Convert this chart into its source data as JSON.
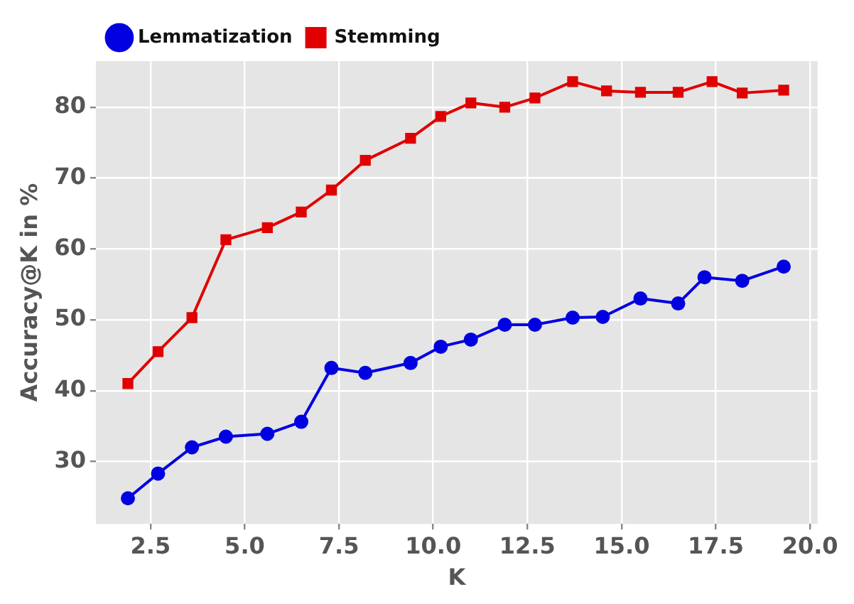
{
  "chart_data": {
    "type": "line",
    "xlabel": "K",
    "ylabel": "Accuracy@K in %",
    "xlim": [
      1.05,
      20.2
    ],
    "ylim": [
      21.2,
      86.5
    ],
    "xticks": [
      {
        "value": 2.5,
        "label": "2.5"
      },
      {
        "value": 5,
        "label": "5.0"
      },
      {
        "value": 7.5,
        "label": "7.5"
      },
      {
        "value": 10,
        "label": "10.0"
      },
      {
        "value": 12.5,
        "label": "12.5"
      },
      {
        "value": 15,
        "label": "15.0"
      },
      {
        "value": 17.5,
        "label": "17.5"
      },
      {
        "value": 20,
        "label": "20.0"
      }
    ],
    "yticks": [
      30,
      40,
      50,
      60,
      70,
      80
    ],
    "grid": true,
    "legend": "top left",
    "series": [
      {
        "name": "Lemmatization",
        "color": "#0000e0",
        "marker": "circle",
        "x": [
          1.9,
          2.7,
          3.6,
          4.5,
          5.6,
          6.5,
          7.3,
          8.2,
          9.4,
          10.2,
          11.0,
          11.9,
          12.7,
          13.7,
          14.5,
          15.5,
          16.5,
          17.2,
          18.2,
          19.3
        ],
        "values": [
          24.8,
          28.3,
          32.0,
          33.5,
          33.9,
          35.6,
          43.2,
          42.5,
          43.9,
          46.2,
          47.2,
          49.3,
          49.3,
          50.3,
          50.4,
          53.0,
          52.3,
          56.0,
          55.5,
          57.5
        ]
      },
      {
        "name": "Stemming",
        "color": "#e00000",
        "marker": "square",
        "x": [
          1.9,
          2.7,
          3.6,
          4.5,
          5.6,
          6.5,
          7.3,
          8.2,
          9.4,
          10.2,
          11.0,
          11.9,
          12.7,
          13.7,
          14.6,
          15.5,
          16.5,
          17.4,
          18.2,
          19.3
        ],
        "values": [
          41.0,
          45.5,
          50.3,
          61.3,
          63.0,
          65.2,
          68.3,
          72.5,
          75.6,
          78.7,
          80.6,
          80.0,
          81.3,
          83.6,
          82.3,
          82.1,
          82.1,
          83.6,
          82.0,
          82.4
        ]
      }
    ]
  }
}
